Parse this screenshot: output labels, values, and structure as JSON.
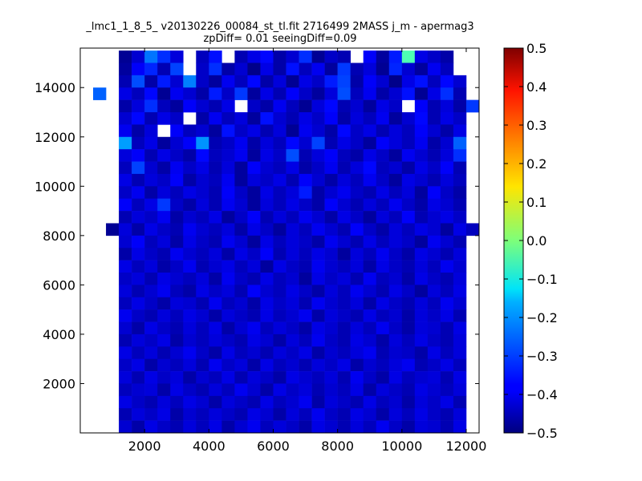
{
  "chart_data": {
    "type": "heatmap",
    "title_line1": "_lmc1_1_8_5_ v20130226_00084_st_tl.fit 2716499 2MASS j_m - apermag3",
    "title_line2": "zpDiff= 0.01 seeingDiff=0.09",
    "xlabel": "",
    "ylabel": "",
    "xlim": [
      0,
      12400
    ],
    "ylim": [
      0,
      15600
    ],
    "x_ticks": [
      2000,
      4000,
      6000,
      8000,
      10000,
      12000
    ],
    "y_ticks": [
      2000,
      4000,
      6000,
      8000,
      10000,
      12000,
      14000
    ],
    "colorbar": {
      "colormap": "jet",
      "vmin": -0.5,
      "vmax": 0.5,
      "ticks": [
        0.5,
        0.4,
        0.3,
        0.2,
        0.1,
        0.0,
        -0.1,
        -0.2,
        -0.3,
        -0.4,
        -0.5
      ]
    },
    "grid": {
      "x_start": 0,
      "y_start": 0,
      "cell_width": 400,
      "cell_height": 500,
      "rows": 31,
      "cols": 31,
      "values_top_to_bottom": [
        "... ... ... -0.48 -0.42 -0.26 -0.33 -0.41 ... -0.44 -0.36 ... -0.45 -0.40 -0.37 -0.46 -0.42 -0.33 -0.48 -0.43 -0.45 ... -0.38 -0.47 -0.35 -0.05 -0.40 -0.43 -0.46 ... ...",
        "... ... ... -0.47 -0.38 -0.34 -0.45 -0.31 ... -0.43 -0.33 -0.46 -0.42 -0.49 -0.40 -0.46 -0.36 -0.44 -0.39 -0.47 -0.32 -0.45 -0.41 -0.48 -0.34 -0.42 -0.47 -0.39 -0.44 ... ...",
        "... ... ... -0.45 -0.30 -0.46 -0.35 -0.42 -0.25 -0.43 -0.47 -0.39 -0.44 -0.37 -0.46 -0.41 -0.48 -0.40 -0.43 -0.35 -0.31 -0.46 -0.38 -0.42 -0.49 -0.40 -0.36 -0.44 -0.37 -0.42 ...",
        "... -0.28 ... -0.40 -0.44 -0.37 -0.48 -0.39 -0.42 -0.46 -0.35 -0.43 -0.32 -0.47 -0.40 -0.45 -0.38 -0.43 -0.47 -0.41 -0.30 -0.44 -0.39 -0.46 -0.42 -0.36 -0.48 -0.40 -0.33 -0.45 ...",
        "... ... ... -0.46 -0.41 -0.33 -0.44 -0.47 -0.38 -0.42 -0.45 -0.40 ... -0.43 -0.46 -0.39 -0.44 -0.48 -0.41 -0.37 -0.45 -0.42 -0.47 -0.40 -0.43 ... -0.38 -0.45 -0.41 -0.46 -0.32",
        "... ... ... -0.42 -0.37 -0.45 -0.40 -0.43 ... -0.46 -0.39 -0.44 -0.41 -0.47 -0.36 -0.42 -0.45 -0.40 -0.43 -0.38 -0.46 -0.41 -0.44 -0.39 -0.47 -0.42 -0.37 -0.45 -0.40 -0.43 ...",
        "... ... ... -0.39 -0.46 -0.41 ... -0.38 -0.44 -0.42 -0.47 -0.36 -0.43 -0.40 -0.45 -0.41 -0.48 -0.39 -0.42 -0.46 -0.37 -0.43 -0.40 -0.45 -0.41 -0.44 -0.38 -0.42 -0.46 -0.40 ...",
        "... ... ... -0.22 -0.44 -0.40 -0.47 -0.42 -0.38 -0.23 -0.45 -0.43 -0.39 -0.46 -0.41 -0.44 -0.37 -0.42 -0.31 -0.45 -0.40 -0.43 -0.47 -0.38 -0.41 -0.44 -0.39 -0.46 -0.42 -0.28 ...",
        "... ... ... -0.41 -0.38 -0.45 -0.40 -0.43 -0.46 -0.37 -0.44 -0.42 -0.39 -0.47 -0.40 -0.43 -0.30 -0.45 -0.41 -0.38 -0.44 -0.46 -0.40 -0.43 -0.47 -0.39 -0.42 -0.45 -0.41 -0.33 ...",
        "... ... ... -0.44 -0.31 -0.42 -0.46 -0.39 -0.43 -0.40 -0.45 -0.41 -0.47 -0.38 -0.42 -0.44 -0.40 -0.46 -0.43 -0.39 -0.45 -0.41 -0.37 -0.44 -0.42 -0.46 -0.40 -0.43 -0.38 -0.45 ...",
        "... ... ... -0.40 -0.45 -0.41 -0.43 -0.38 -0.46 -0.42 -0.44 -0.39 -0.47 -0.41 -0.43 -0.40 -0.45 -0.38 -0.42 -0.46 -0.41 -0.44 -0.39 -0.43 -0.47 -0.40 -0.42 -0.45 -0.41 -0.44 ...",
        "... ... ... -0.43 -0.39 -0.46 -0.41 -0.44 -0.40 -0.42 -0.45 -0.38 -0.43 -0.47 -0.40 -0.44 -0.41 -0.35 -0.46 -0.42 -0.39 -0.43 -0.45 -0.40 -0.44 -0.41 -0.47 -0.38 -0.43 -0.46 ...",
        "... ... ... -0.38 -0.44 -0.40 -0.32 -0.43 -0.46 -0.41 -0.45 -0.39 -0.42 -0.47 -0.41 -0.44 -0.40 -0.43 -0.46 -0.38 -0.42 -0.45 -0.41 -0.44 -0.39 -0.43 -0.46 -0.40 -0.42 -0.45 ...",
        "... ... ... -0.45 -0.41 -0.43 -0.39 -0.46 -0.42 -0.44 -0.40 -0.47 -0.43 -0.38 -0.45 -0.41 -0.44 -0.39 -0.42 -0.46 -0.40 -0.43 -0.47 -0.41 -0.44 -0.38 -0.45 -0.42 -0.40 -0.43 ...",
        "... ... -0.48 -0.41 -0.46 -0.40 -0.43 -0.45 -0.39 -0.42 -0.44 -0.41 -0.46 -0.40 -0.43 -0.47 -0.41 -0.44 -0.39 -0.42 -0.45 -0.38 -0.43 -0.46 -0.41 -0.44 -0.40 -0.42 -0.47 -0.40 -0.44",
        "... ... ... -0.42 -0.38 -0.44 -0.41 -0.46 -0.40 -0.43 -0.45 -0.39 -0.42 -0.47 -0.40 -0.44 -0.41 -0.43 -0.46 -0.39 -0.42 -0.45 -0.40 -0.44 -0.41 -0.43 -0.47 -0.39 -0.42 -0.45 ...",
        "... ... ... -0.46 -0.40 -0.43 -0.45 -0.39 -0.42 -0.44 -0.41 -0.46 -0.40 -0.43 -0.38 -0.45 -0.41 -0.44 -0.40 -0.42 -0.47 -0.41 -0.44 -0.39 -0.43 -0.46 -0.40 -0.42 -0.45 -0.41 ...",
        "... ... ... -0.40 -0.44 -0.41 -0.46 -0.43 -0.39 -0.45 -0.42 -0.40 -0.44 -0.41 -0.47 -0.40 -0.43 -0.45 -0.39 -0.42 -0.44 -0.41 -0.46 -0.40 -0.43 -0.45 -0.41 -0.44 -0.39 -0.42 ...",
        "... ... ... -0.43 -0.41 -0.45 -0.40 -0.42 -0.44 -0.41 -0.46 -0.39 -0.43 -0.45 -0.40 -0.44 -0.42 -0.47 -0.40 -0.43 -0.41 -0.45 -0.39 -0.44 -0.42 -0.46 -0.40 -0.43 -0.45 -0.41 ...",
        "... ... ... -0.41 -0.45 -0.42 -0.39 -0.44 -0.46 -0.40 -0.43 -0.41 -0.45 -0.38 -0.42 -0.44 -0.40 -0.43 -0.46 -0.41 -0.44 -0.39 -0.42 -0.45 -0.40 -0.43 -0.47 -0.41 -0.44 -0.40 ...",
        "... ... ... -0.44 -0.40 -0.43 -0.46 -0.41 -0.42 -0.45 -0.39 -0.44 -0.42 -0.46 -0.40 -0.43 -0.41 -0.45 -0.39 -0.42 -0.44 -0.41 -0.46 -0.40 -0.43 -0.45 -0.41 -0.44 -0.39 -0.42 ...",
        "... ... ... -0.39 -0.43 -0.45 -0.41 -0.44 -0.40 -0.42 -0.46 -0.41 -0.43 -0.45 -0.40 -0.44 -0.42 -0.39 -0.46 -0.41 -0.43 -0.45 -0.40 -0.44 -0.42 -0.46 -0.41 -0.43 -0.40 -0.45 ...",
        "... ... ... -0.42 -0.46 -0.40 -0.43 -0.45 -0.41 -0.44 -0.40 -0.46 -0.42 -0.39 -0.44 -0.41 -0.43 -0.46 -0.40 -0.42 -0.45 -0.41 -0.44 -0.39 -0.43 -0.46 -0.41 -0.42 -0.45 -0.40 ...",
        "... ... ... -0.45 -0.41 -0.43 -0.40 -0.46 -0.42 -0.44 -0.41 -0.43 -0.45 -0.40 -0.42 -0.46 -0.41 -0.44 -0.39 -0.43 -0.45 -0.40 -0.42 -0.46 -0.41 -0.44 -0.40 -0.43 -0.45 -0.41 ...",
        "... ... ... -0.40 -0.44 -0.41 -0.45 -0.42 -0.39 -0.43 -0.46 -0.40 -0.44 -0.42 -0.45 -0.41 -0.43 -0.40 -0.46 -0.42 -0.44 -0.41 -0.39 -0.45 -0.42 -0.43 -0.46 -0.40 -0.44 -0.41 ...",
        "... ... ... -0.43 -0.40 -0.46 -0.42 -0.44 -0.41 -0.45 -0.39 -0.43 -0.41 -0.46 -0.40 -0.44 -0.42 -0.45 -0.41 -0.43 -0.40 -0.46 -0.42 -0.44 -0.41 -0.39 -0.45 -0.43 -0.40 -0.44 ...",
        "... ... ... -0.41 -0.45 -0.40 -0.43 -0.41 -0.46 -0.42 -0.44 -0.40 -0.45 -0.41 -0.43 -0.46 -0.40 -0.42 -0.44 -0.41 -0.45 -0.39 -0.43 -0.46 -0.40 -0.44 -0.42 -0.41 -0.45 -0.40 ...",
        "... ... ... -0.44 -0.42 -0.41 -0.46 -0.40 -0.43 -0.45 -0.41 -0.44 -0.39 -0.42 -0.46 -0.40 -0.43 -0.41 -0.45 -0.42 -0.44 -0.40 -0.46 -0.41 -0.43 -0.45 -0.40 -0.42 -0.44 -0.41 ...",
        "... ... ... -0.40 -0.43 -0.45 -0.41 -0.44 -0.40 -0.42 -0.46 -0.41 -0.43 -0.45 -0.40 -0.44 -0.42 -0.39 -0.46 -0.41 -0.43 -0.45 -0.40 -0.44 -0.42 -0.46 -0.41 -0.43 -0.40 -0.45 ...",
        "... ... ... -0.45 -0.41 -0.43 -0.40 -0.46 -0.42 -0.44 -0.41 -0.43 -0.45 -0.40 -0.42 -0.46 -0.41 -0.44 -0.39 -0.43 -0.45 -0.40 -0.42 -0.46 -0.41 -0.44 -0.40 -0.43 -0.45 -0.41 ...",
        "... ... ... -0.42 -0.46 -0.40 -0.43 -0.45 -0.41 -0.44 -0.40 -0.46 -0.42 -0.39 -0.44 -0.41 -0.43 -0.46 -0.40 -0.42 -0.45 -0.41 -0.44 -0.39 -0.43 -0.46 -0.41 -0.42 -0.45 -0.40 ..."
      ]
    }
  }
}
